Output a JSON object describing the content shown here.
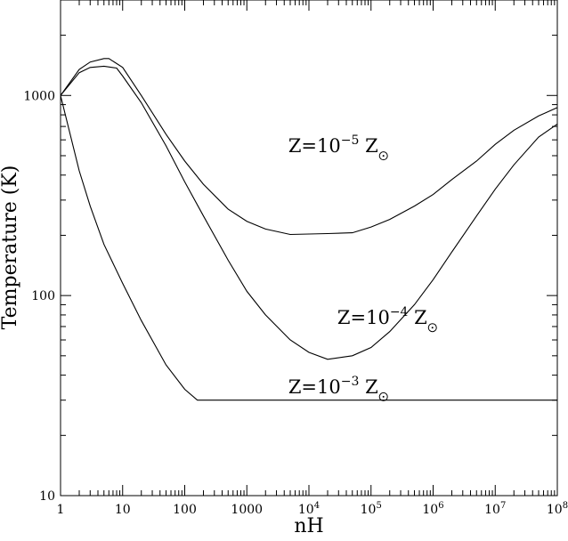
{
  "chart_data": {
    "type": "line",
    "title": "",
    "xlabel": "nH",
    "ylabel": "Temperature (K)",
    "x_scale": "log",
    "y_scale": "log",
    "xlim": [
      1,
      100000000
    ],
    "ylim": [
      10,
      3000
    ],
    "grid": false,
    "legend": "none (series labeled inline)",
    "x_ticks": [
      {
        "value": 1,
        "label": "1",
        "exp": ""
      },
      {
        "value": 10,
        "label": "10",
        "exp": ""
      },
      {
        "value": 100,
        "label": "100",
        "exp": ""
      },
      {
        "value": 1000,
        "label": "1000",
        "exp": ""
      },
      {
        "value": 10000,
        "label": "10",
        "exp": "4"
      },
      {
        "value": 100000,
        "label": "10",
        "exp": "5"
      },
      {
        "value": 1000000,
        "label": "10",
        "exp": "6"
      },
      {
        "value": 10000000,
        "label": "10",
        "exp": "7"
      },
      {
        "value": 100000000,
        "label": "10",
        "exp": "8"
      }
    ],
    "y_ticks": [
      {
        "value": 10,
        "label": "10"
      },
      {
        "value": 100,
        "label": "100"
      },
      {
        "value": 1000,
        "label": "1000"
      }
    ],
    "series": [
      {
        "label_base": "Z=10",
        "label_exp": "−5",
        "label_suffix": "Z",
        "label_at": [
          130000,
          520
        ],
        "points": [
          [
            1,
            1000
          ],
          [
            2,
            1350
          ],
          [
            3,
            1470
          ],
          [
            5,
            1530
          ],
          [
            6,
            1530
          ],
          [
            10,
            1380
          ],
          [
            20,
            1000
          ],
          [
            50,
            640
          ],
          [
            100,
            470
          ],
          [
            200,
            360
          ],
          [
            500,
            270
          ],
          [
            1000,
            235
          ],
          [
            2000,
            215
          ],
          [
            5000,
            202
          ],
          [
            10000,
            203
          ],
          [
            20000,
            204
          ],
          [
            50000,
            206
          ],
          [
            100000,
            220
          ],
          [
            200000,
            240
          ],
          [
            500000,
            280
          ],
          [
            1000000,
            320
          ],
          [
            2000000,
            380
          ],
          [
            5000000,
            470
          ],
          [
            10000000,
            570
          ],
          [
            20000000,
            670
          ],
          [
            50000000,
            790
          ],
          [
            100000000,
            870
          ]
        ]
      },
      {
        "label_base": "Z=10",
        "label_exp": "−4",
        "label_suffix": "Z",
        "label_at": [
          800000,
          72
        ],
        "points": [
          [
            1,
            1000
          ],
          [
            2,
            1300
          ],
          [
            3,
            1380
          ],
          [
            5,
            1400
          ],
          [
            8,
            1370
          ],
          [
            10,
            1250
          ],
          [
            20,
            920
          ],
          [
            50,
            560
          ],
          [
            100,
            370
          ],
          [
            200,
            250
          ],
          [
            500,
            150
          ],
          [
            1000,
            105
          ],
          [
            2000,
            80
          ],
          [
            5000,
            60
          ],
          [
            10000,
            52
          ],
          [
            20000,
            48
          ],
          [
            50000,
            50
          ],
          [
            100000,
            55
          ],
          [
            200000,
            66
          ],
          [
            500000,
            90
          ],
          [
            1000000,
            120
          ],
          [
            2000000,
            165
          ],
          [
            5000000,
            250
          ],
          [
            10000000,
            340
          ],
          [
            20000000,
            450
          ],
          [
            50000000,
            620
          ],
          [
            100000000,
            720
          ]
        ]
      },
      {
        "label_base": "Z=10",
        "label_exp": "−3",
        "label_suffix": "Z",
        "label_at": [
          130000,
          32.5
        ],
        "points": [
          [
            1,
            1000
          ],
          [
            2,
            420
          ],
          [
            3,
            280
          ],
          [
            5,
            180
          ],
          [
            10,
            115
          ],
          [
            20,
            75
          ],
          [
            50,
            45
          ],
          [
            100,
            34
          ],
          [
            160,
            30
          ],
          [
            1000,
            30
          ],
          [
            10000,
            30
          ],
          [
            100000,
            30
          ],
          [
            1000000,
            30
          ],
          [
            10000000,
            30
          ],
          [
            100000000,
            30
          ]
        ]
      }
    ]
  }
}
